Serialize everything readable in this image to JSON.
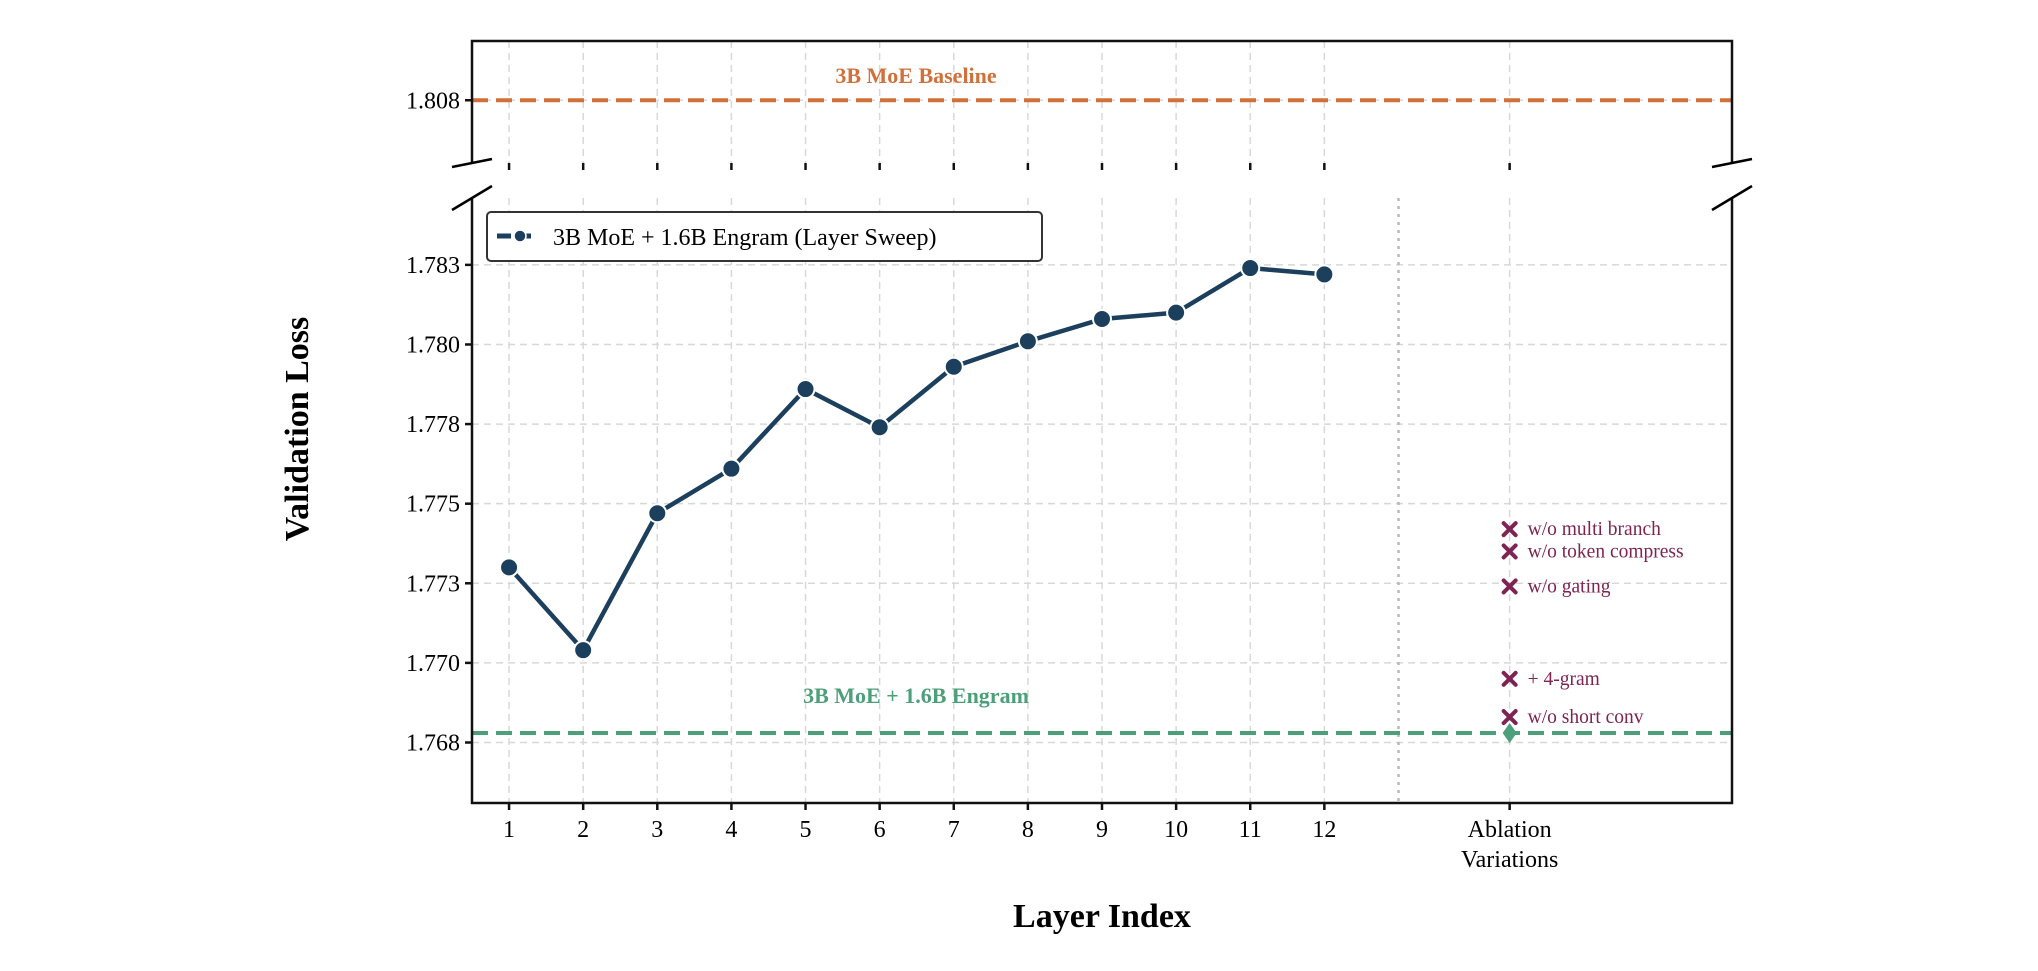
{
  "chart_data": {
    "type": "line",
    "xlabel": "Layer Index",
    "ylabel": "Validation Loss",
    "x_tick_labels": [
      "1",
      "2",
      "3",
      "4",
      "5",
      "6",
      "7",
      "8",
      "9",
      "10",
      "11",
      "12"
    ],
    "ablation_tick_label": [
      "Ablation",
      "Variations"
    ],
    "xlim": [
      0.5,
      17.5
    ],
    "ablation_x": 14.5,
    "divider_x": 13,
    "broken_axis": true,
    "grid": true,
    "legend_position": "top-left",
    "top_panel": {
      "ylim": [
        1.8062,
        1.8097
      ],
      "y_ticks": [
        {
          "value": 1.808,
          "label": "1.808"
        }
      ]
    },
    "bottom_panel": {
      "ylim": [
        1.7656,
        1.7846
      ],
      "y_ticks": [
        {
          "value": 1.7825,
          "label": "1.783"
        },
        {
          "value": 1.78,
          "label": "1.780"
        },
        {
          "value": 1.7775,
          "label": "1.778"
        },
        {
          "value": 1.775,
          "label": "1.775"
        },
        {
          "value": 1.7725,
          "label": "1.773"
        },
        {
          "value": 1.77,
          "label": "1.770"
        },
        {
          "value": 1.7675,
          "label": "1.768"
        }
      ]
    },
    "series": [
      {
        "name": "3B MoE + 1.6B Engram (Layer Sweep)",
        "color": "#1B3F5C",
        "x": [
          1,
          2,
          3,
          4,
          5,
          6,
          7,
          8,
          9,
          10,
          11,
          12
        ],
        "y": [
          1.773,
          1.7704,
          1.7747,
          1.7761,
          1.7786,
          1.7774,
          1.7793,
          1.7801,
          1.7808,
          1.781,
          1.7824,
          1.7822
        ]
      }
    ],
    "reference_lines": [
      {
        "label": "3B MoE Baseline",
        "value": 1.808,
        "color": "#D0703A",
        "panel": "top"
      },
      {
        "label": "3B MoE + 1.6B Engram",
        "value": 1.7678,
        "color": "#4C9F7A",
        "panel": "bottom"
      }
    ],
    "ablations": {
      "color": "#7D2452",
      "points": [
        {
          "label": "w/o multi branch",
          "value": 1.7742
        },
        {
          "label": "w/o token compress",
          "value": 1.7735
        },
        {
          "label": "w/o gating",
          "value": 1.7724
        },
        {
          "label": "+ 4-gram",
          "value": 1.7695
        },
        {
          "label": "w/o short conv",
          "value": 1.7683
        }
      ],
      "reference_marker": {
        "value": 1.7678,
        "color": "#4C9F7A",
        "shape": "diamond"
      }
    }
  }
}
